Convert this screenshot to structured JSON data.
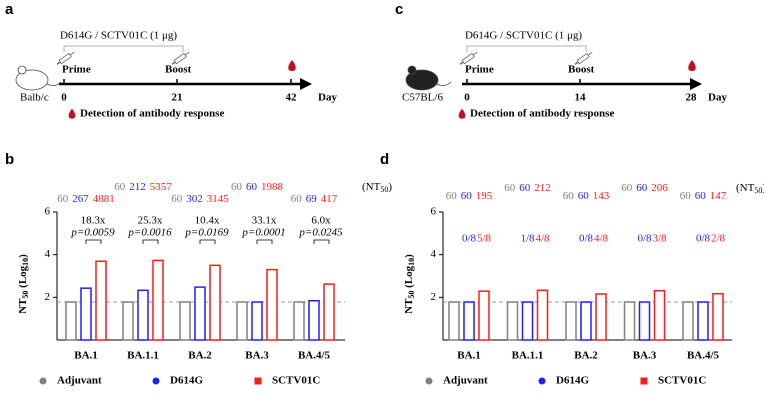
{
  "timelines": [
    {
      "label": "a",
      "dose": "D614G / SCTV01C (1 μg)",
      "prime": "Prime",
      "boost": "Boost",
      "strain": "Balb/c",
      "days": [
        "0",
        "21",
        "42"
      ],
      "day": "Day",
      "detection": "Detection of antibody response"
    },
    {
      "label": "c",
      "dose": "D614G / SCTV01C (1 μg)",
      "prime": "Prime",
      "boost": "Boost",
      "strain": "C57BL/6",
      "days": [
        "0",
        "14",
        "28"
      ],
      "day": "Day",
      "detection": "Detection of antibody response"
    }
  ],
  "chart_data": [
    {
      "type": "bar",
      "panel": "b",
      "ylabel": [
        "NT",
        "50",
        " (Log",
        "10",
        ")"
      ],
      "unit": [
        "(NT",
        "50",
        ")"
      ],
      "categories": [
        "BA.1",
        "BA.1.1",
        "BA.2",
        "BA.3",
        "BA.4/5"
      ],
      "ylim": [
        0,
        6
      ],
      "yticks": [
        2,
        4,
        6
      ],
      "threshold": 1.78,
      "series": [
        {
          "name": "Adjuvant",
          "color": "#808080",
          "marker": "circle",
          "values": [
            1.78,
            1.78,
            1.78,
            1.78,
            1.78
          ],
          "gmt": [
            60,
            60,
            60,
            60,
            60
          ]
        },
        {
          "name": "D614G",
          "color": "#1f1fff",
          "marker": "circle",
          "values": [
            2.43,
            2.33,
            2.48,
            1.78,
            1.84
          ],
          "gmt": [
            267,
            212,
            302,
            60,
            69
          ]
        },
        {
          "name": "SCTV01C",
          "color": "#ff1a1a",
          "marker": "square",
          "values": [
            3.69,
            3.73,
            3.5,
            3.3,
            2.62
          ],
          "gmt": [
            4881,
            5357,
            3145,
            1988,
            417
          ]
        }
      ],
      "fold": [
        "18.3x",
        "25.3x",
        "10.4x",
        "33.1x",
        "6.0x"
      ],
      "p": [
        "p=0.0059",
        "p=0.0016",
        "p=0.0169",
        "p=0.0001",
        "p=0.0245"
      ]
    },
    {
      "type": "bar",
      "panel": "d",
      "ylabel": [
        "NT",
        "50",
        " (Log",
        "10",
        ")"
      ],
      "unit": [
        "(NT",
        "50",
        ")"
      ],
      "categories": [
        "BA.1",
        "BA.1.1",
        "BA.2",
        "BA.3",
        "BA.4/5"
      ],
      "ylim": [
        0,
        6
      ],
      "yticks": [
        2,
        4,
        6
      ],
      "threshold": 1.78,
      "series": [
        {
          "name": "Adjuvant",
          "color": "#808080",
          "marker": "circle",
          "values": [
            1.78,
            1.78,
            1.78,
            1.78,
            1.78
          ],
          "gmt": [
            60,
            60,
            60,
            60,
            60
          ]
        },
        {
          "name": "D614G",
          "color": "#1f1fff",
          "marker": "circle",
          "values": [
            1.78,
            1.78,
            1.78,
            1.78,
            1.78
          ],
          "gmt": [
            60,
            60,
            60,
            60,
            60
          ],
          "responders": [
            "0/8",
            "1/8",
            "0/8",
            "0/8",
            "0/8"
          ]
        },
        {
          "name": "SCTV01C",
          "color": "#ff1a1a",
          "marker": "square",
          "values": [
            2.29,
            2.33,
            2.16,
            2.31,
            2.17
          ],
          "gmt": [
            195,
            212,
            143,
            206,
            147
          ],
          "responders": [
            "5/8",
            "4/8",
            "4/8",
            "3/8",
            "2/8"
          ]
        }
      ]
    }
  ]
}
